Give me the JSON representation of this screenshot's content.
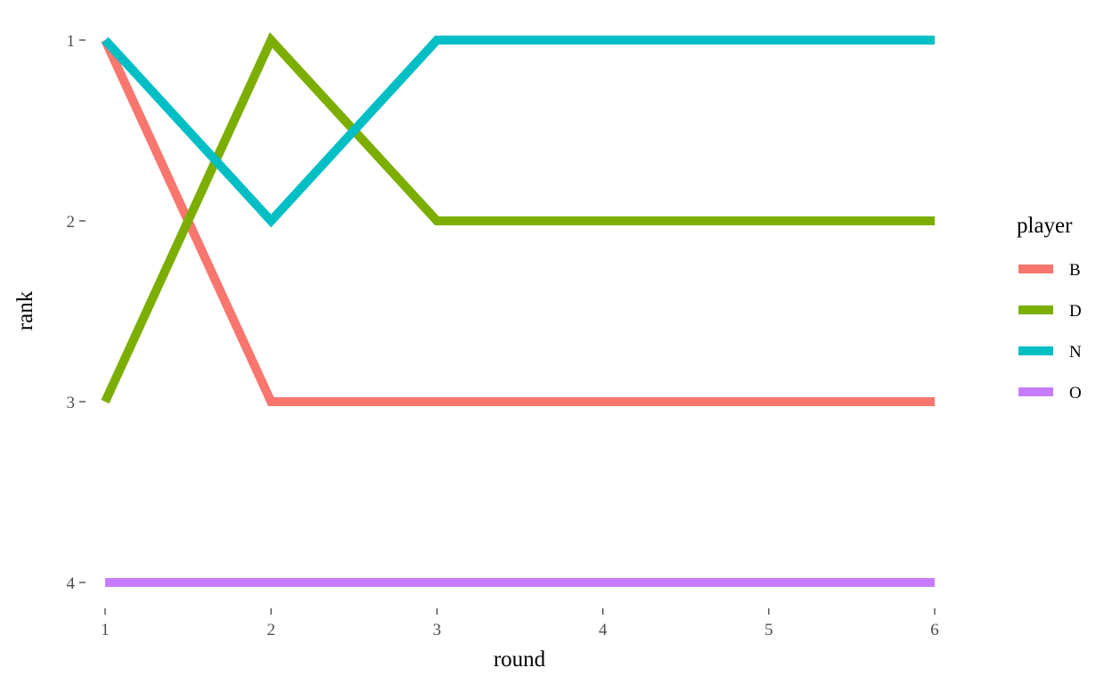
{
  "chart_data": {
    "type": "line",
    "title": "",
    "xlabel": "round",
    "ylabel": "rank",
    "x": [
      1,
      2,
      3,
      4,
      5,
      6
    ],
    "x_ticks": [
      "1",
      "2",
      "3",
      "4",
      "5",
      "6"
    ],
    "y_ticks": [
      "1",
      "2",
      "3",
      "4"
    ],
    "xlim": [
      1,
      6
    ],
    "ylim": [
      1,
      4
    ],
    "y_reversed": true,
    "grid": false,
    "legend": {
      "title": "player",
      "placement": "right"
    },
    "series": [
      {
        "name": "B",
        "color": "#F8766D",
        "values": [
          1,
          3,
          3,
          3,
          3,
          3
        ]
      },
      {
        "name": "D",
        "color": "#7CAE00",
        "values": [
          3,
          1,
          2,
          2,
          2,
          2
        ]
      },
      {
        "name": "N",
        "color": "#00BFC4",
        "values": [
          1,
          2,
          1,
          1,
          1,
          1
        ]
      },
      {
        "name": "O",
        "color": "#C77CFF",
        "values": [
          4,
          4,
          4,
          4,
          4,
          4
        ]
      }
    ]
  }
}
